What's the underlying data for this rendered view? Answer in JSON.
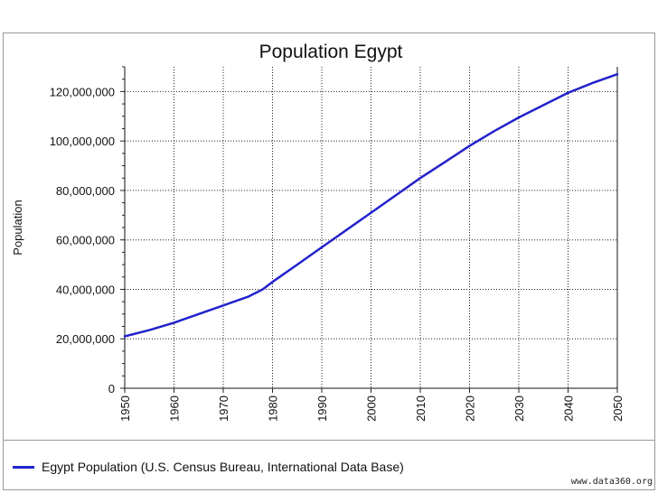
{
  "chart_data": {
    "type": "line",
    "title": "Population Egypt",
    "xlabel": "",
    "ylabel": "Population",
    "xlim": [
      1950,
      2050
    ],
    "ylim": [
      0,
      130000000
    ],
    "grid": true,
    "legend_position": "bottom-left",
    "x_ticks": [
      "1950",
      "1960",
      "1970",
      "1980",
      "1990",
      "2000",
      "2010",
      "2020",
      "2030",
      "2040",
      "2050"
    ],
    "y_ticks": [
      "0",
      "20,000,000",
      "40,000,000",
      "60,000,000",
      "80,000,000",
      "100,000,000",
      "120,000,000"
    ],
    "series": [
      {
        "name": "Egypt Population (U.S. Census Bureau, International Data Base)",
        "color": "#2222cc",
        "x": [
          1950,
          1955,
          1960,
          1965,
          1970,
          1975,
          1978,
          1980,
          1985,
          1990,
          1995,
          2000,
          2005,
          2010,
          2015,
          2020,
          2025,
          2030,
          2035,
          2040,
          2045,
          2050
        ],
        "y": [
          21000000,
          23500000,
          26500000,
          30000000,
          33500000,
          37000000,
          40000000,
          43000000,
          50000000,
          57000000,
          64000000,
          71000000,
          78000000,
          85000000,
          91500000,
          98000000,
          104000000,
          109500000,
          114500000,
          119500000,
          123500000,
          127000000
        ]
      }
    ]
  },
  "source": "www.data360.org"
}
